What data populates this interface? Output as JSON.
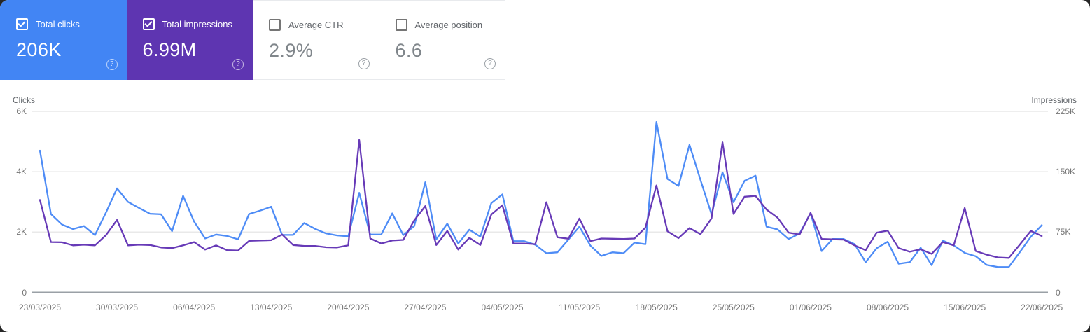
{
  "cards": [
    {
      "label": "Total clicks",
      "value": "206K",
      "selected": true,
      "bg": "#4285f4"
    },
    {
      "label": "Total impressions",
      "value": "6.99M",
      "selected": true,
      "bg": "#5e35b1"
    },
    {
      "label": "Average CTR",
      "value": "2.9%",
      "selected": false,
      "bg": "#ffffff"
    },
    {
      "label": "Average position",
      "value": "6.6",
      "selected": false,
      "bg": "#ffffff"
    }
  ],
  "help_icon_glyph": "?",
  "chart_data": {
    "type": "line",
    "x_start_date": "23/03/2025",
    "x_end_date": "22/06/2025",
    "x_interval_days": 1,
    "x_tick_labels": [
      "23/03/2025",
      "30/03/2025",
      "06/04/2025",
      "13/04/2025",
      "20/04/2025",
      "27/04/2025",
      "04/05/2025",
      "11/05/2025",
      "18/05/2025",
      "25/05/2025",
      "01/06/2025",
      "08/06/2025",
      "15/06/2025",
      "22/06/2025"
    ],
    "grid": true,
    "legend_position": "none",
    "left_axis": {
      "title": "Clicks",
      "tick_labels": [
        "0",
        "2K",
        "4K",
        "6K"
      ],
      "tick_values": [
        0,
        2000,
        4000,
        6000
      ],
      "max": 6000
    },
    "right_axis": {
      "title": "Impressions",
      "tick_labels": [
        "0",
        "75K",
        "150K",
        "225K"
      ],
      "tick_values": [
        0,
        75000,
        150000,
        225000
      ],
      "max": 225000
    },
    "series": [
      {
        "name": "Total clicks",
        "axis": "left",
        "color": "#4e8cf6",
        "values": [
          4700,
          2600,
          2250,
          2100,
          2200,
          1900,
          2650,
          3450,
          3000,
          2800,
          2610,
          2590,
          2030,
          3200,
          2350,
          1790,
          1920,
          1870,
          1760,
          2600,
          2710,
          2840,
          1905,
          1905,
          2300,
          2105,
          1955,
          1890,
          1860,
          3300,
          1920,
          1920,
          2620,
          1900,
          2200,
          3650,
          1760,
          2280,
          1620,
          2080,
          1850,
          2960,
          3250,
          1700,
          1700,
          1580,
          1300,
          1330,
          1750,
          2180,
          1550,
          1210,
          1330,
          1300,
          1650,
          1600,
          5650,
          3760,
          3530,
          4890,
          3730,
          2590,
          3980,
          2990,
          3700,
          3870,
          2180,
          2090,
          1770,
          1950,
          2630,
          1370,
          1770,
          1770,
          1600,
          1000,
          1465,
          1680,
          950,
          1000,
          1480,
          900,
          1720,
          1560,
          1310,
          1200,
          910,
          840,
          840,
          1330,
          1845,
          2230
        ]
      },
      {
        "name": "Total impressions",
        "axis": "right",
        "color": "#673ab7",
        "values": [
          115000,
          62600,
          62300,
          58500,
          59300,
          58500,
          71300,
          90000,
          58500,
          59300,
          58900,
          55900,
          55100,
          58500,
          62600,
          53300,
          58500,
          52500,
          52100,
          64100,
          64500,
          64900,
          72000,
          58900,
          57800,
          57800,
          56100,
          55900,
          58500,
          189300,
          67100,
          60800,
          64500,
          65300,
          89600,
          107300,
          58900,
          76500,
          53300,
          67900,
          58900,
          96800,
          108400,
          60800,
          60800,
          60000,
          112100,
          68600,
          66800,
          91900,
          63800,
          67000,
          66800,
          66500,
          67000,
          80600,
          133000,
          76000,
          67500,
          80000,
          72400,
          92000,
          186400,
          97500,
          119000,
          120000,
          103000,
          93000,
          74300,
          72000,
          99000,
          66400,
          66000,
          65600,
          58500,
          52500,
          74300,
          76900,
          55100,
          50600,
          53600,
          48000,
          62600,
          58500,
          105000,
          51400,
          46900,
          43500,
          42800,
          59300,
          76500,
          70100
        ]
      }
    ]
  }
}
